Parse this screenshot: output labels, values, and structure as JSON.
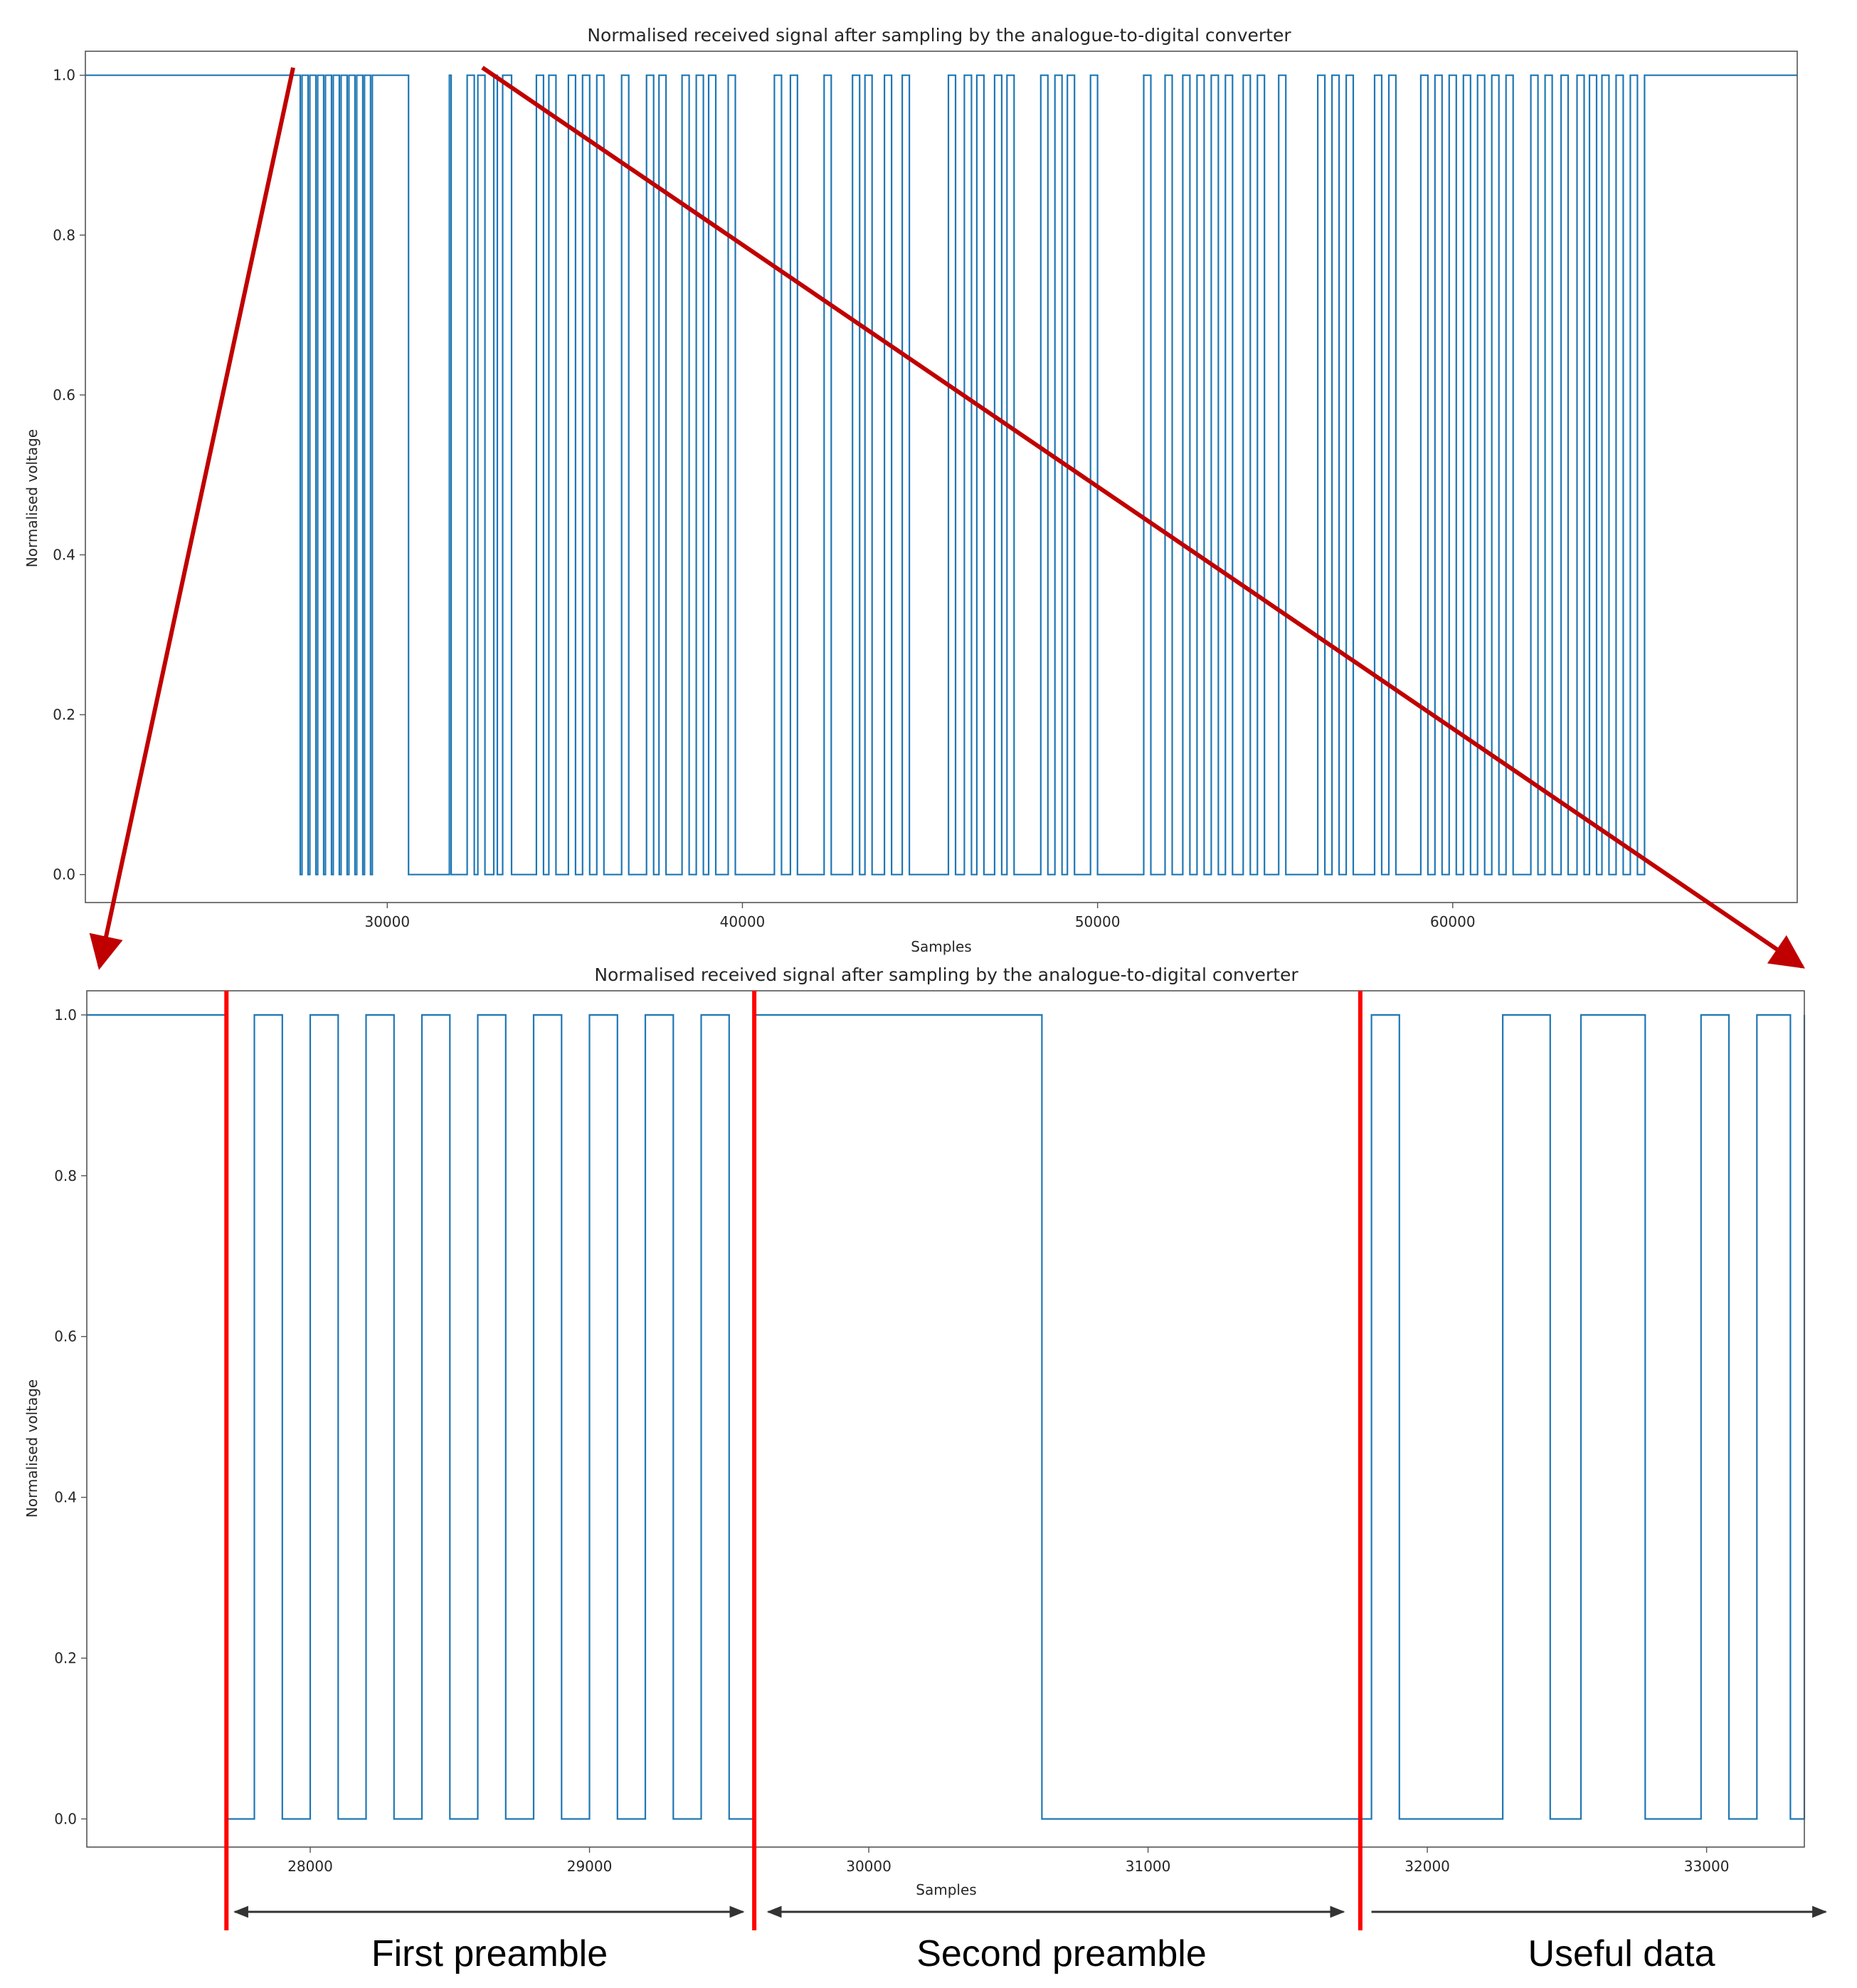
{
  "colors": {
    "signal": "#1f77b4",
    "zoom_arrows": "#c00000",
    "section_markers": "#ff0000",
    "region_arrows": "#333333",
    "axes": "#555555"
  },
  "annotations": {
    "first_preamble": "First preamble",
    "second_preamble": "Second preamble",
    "useful_data": "Useful data"
  },
  "chart_data": [
    {
      "type": "line",
      "title": "Normalised received signal after sampling by the analogue-to-digital converter",
      "xlabel": "Samples",
      "ylabel": "Normalised voltage",
      "xlim": [
        21500,
        69700
      ],
      "ylim": [
        -0.035,
        1.03
      ],
      "xticks": [
        30000,
        40000,
        50000,
        60000
      ],
      "xtick_labels": [
        "30000",
        "40000",
        "50000",
        "60000"
      ],
      "yticks": [
        0.0,
        0.2,
        0.4,
        0.6,
        0.8,
        1.0
      ],
      "ytick_labels": [
        "0.0",
        "0.2",
        "0.4",
        "0.6",
        "0.8",
        "1.0"
      ],
      "grid": false,
      "drawstyle": "steps",
      "low_intervals": [
        [
          27550,
          27600
        ],
        [
          27770,
          27820
        ],
        [
          27990,
          28040
        ],
        [
          28210,
          28260
        ],
        [
          28430,
          28480
        ],
        [
          28650,
          28700
        ],
        [
          28870,
          28920
        ],
        [
          29090,
          29140
        ],
        [
          29310,
          29360
        ],
        [
          29530,
          29580
        ],
        [
          30600,
          31750
        ],
        [
          31800,
          32250
        ],
        [
          32450,
          32550
        ],
        [
          32750,
          33000
        ],
        [
          33100,
          33250
        ],
        [
          33500,
          34200
        ],
        [
          34400,
          34550
        ],
        [
          34750,
          35100
        ],
        [
          35300,
          35500
        ],
        [
          35700,
          35900
        ],
        [
          36100,
          36600
        ],
        [
          36800,
          37300
        ],
        [
          37500,
          37650
        ],
        [
          37850,
          38300
        ],
        [
          38500,
          38700
        ],
        [
          38900,
          39050
        ],
        [
          39250,
          39600
        ],
        [
          39800,
          40900
        ],
        [
          41100,
          41350
        ],
        [
          41550,
          42300
        ],
        [
          42500,
          43100
        ],
        [
          43300,
          43450
        ],
        [
          43650,
          44000
        ],
        [
          44200,
          44500
        ],
        [
          44700,
          45800
        ],
        [
          46000,
          46250
        ],
        [
          46450,
          46600
        ],
        [
          46800,
          47100
        ],
        [
          47300,
          47450
        ],
        [
          47650,
          48400
        ],
        [
          48600,
          48800
        ],
        [
          49000,
          49150
        ],
        [
          49350,
          49800
        ],
        [
          50000,
          51300
        ],
        [
          51500,
          51900
        ],
        [
          52100,
          52400
        ],
        [
          52600,
          52800
        ],
        [
          53000,
          53200
        ],
        [
          53400,
          53600
        ],
        [
          53800,
          54100
        ],
        [
          54300,
          54500
        ],
        [
          54700,
          55100
        ],
        [
          55300,
          56200
        ],
        [
          56400,
          56600
        ],
        [
          56800,
          57000
        ],
        [
          57200,
          57800
        ],
        [
          58000,
          58200
        ],
        [
          58400,
          59100
        ],
        [
          59300,
          59500
        ],
        [
          59700,
          59900
        ],
        [
          60100,
          60300
        ],
        [
          60500,
          60700
        ],
        [
          60900,
          61100
        ],
        [
          61300,
          61500
        ],
        [
          61700,
          62200
        ],
        [
          62400,
          62600
        ],
        [
          62800,
          63050
        ],
        [
          63250,
          63500
        ],
        [
          63700,
          63850
        ],
        [
          64050,
          64200
        ],
        [
          64400,
          64600
        ],
        [
          64800,
          65000
        ],
        [
          65200,
          65400
        ]
      ],
      "x_range_of_signal": [
        21500,
        69700
      ]
    },
    {
      "type": "line",
      "title": "Normalised received signal after sampling by the analogue-to-digital converter",
      "xlabel": "Samples",
      "ylabel": "Normalised voltage",
      "xlim": [
        27200,
        33350
      ],
      "ylim": [
        -0.035,
        1.03
      ],
      "xticks": [
        28000,
        29000,
        30000,
        31000,
        32000,
        33000
      ],
      "xtick_labels": [
        "28000",
        "29000",
        "30000",
        "31000",
        "32000",
        "33000"
      ],
      "yticks": [
        0.0,
        0.2,
        0.4,
        0.6,
        0.8,
        1.0
      ],
      "ytick_labels": [
        "0.0",
        "0.2",
        "0.4",
        "0.6",
        "0.8",
        "1.0"
      ],
      "grid": false,
      "drawstyle": "steps",
      "low_intervals": [
        [
          27700,
          27800
        ],
        [
          27900,
          28000
        ],
        [
          28100,
          28200
        ],
        [
          28300,
          28400
        ],
        [
          28500,
          28600
        ],
        [
          28700,
          28800
        ],
        [
          28900,
          29000
        ],
        [
          29100,
          29200
        ],
        [
          29300,
          29400
        ],
        [
          29500,
          29590
        ],
        [
          30620,
          31800
        ],
        [
          31900,
          32270
        ],
        [
          32440,
          32550
        ],
        [
          32780,
          32980
        ],
        [
          33080,
          33180
        ],
        [
          33300,
          33350
        ]
      ],
      "section_markers_x": [
        27700,
        29590,
        31760
      ],
      "sections": [
        {
          "label": "First preamble",
          "x_start": 27730,
          "x_end": 29550
        },
        {
          "label": "Second preamble",
          "x_start": 29640,
          "x_end": 31700
        },
        {
          "label": "Useful data",
          "x_start": 31800,
          "x_end": 33350
        }
      ]
    }
  ]
}
